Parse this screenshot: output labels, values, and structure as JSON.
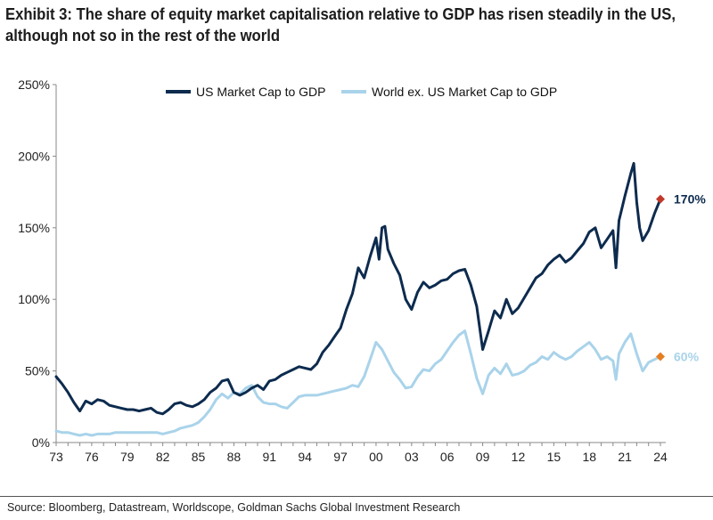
{
  "header": {
    "title": "Exhibit 3: The share of equity market capitalisation relative to GDP has risen steadily in the US, although not so in the rest of the world"
  },
  "footer": {
    "source": "Source: Bloomberg, Datastream, Worldscope, Goldman Sachs Global Investment Research"
  },
  "colors": {
    "us": "#0d2b4e",
    "world": "#a9d3ea",
    "us_marker": "#c0392b",
    "world_marker": "#e67e22"
  },
  "chart_data": {
    "type": "line",
    "title": "Exhibit 3: The share of equity market capitalisation relative to GDP has risen steadily in the US, although not so in the rest of the world",
    "xlabel": "",
    "ylabel": "",
    "xlim": [
      1973,
      2024
    ],
    "ylim": [
      0,
      250
    ],
    "x_ticks": [
      1973,
      1976,
      1979,
      1982,
      1985,
      1988,
      1991,
      1994,
      1997,
      2000,
      2003,
      2006,
      2009,
      2012,
      2015,
      2018,
      2021,
      2024
    ],
    "x_tick_labels": [
      "73",
      "76",
      "79",
      "82",
      "85",
      "88",
      "91",
      "94",
      "97",
      "00",
      "03",
      "06",
      "09",
      "12",
      "15",
      "18",
      "21",
      "24"
    ],
    "y_ticks": [
      0,
      50,
      100,
      150,
      200,
      250
    ],
    "y_tick_labels": [
      "0%",
      "50%",
      "100%",
      "150%",
      "200%",
      "250%"
    ],
    "grid": false,
    "legend_position": "top-center",
    "series": [
      {
        "name": "US Market Cap to GDP",
        "end_label": "170%",
        "end_value": 170,
        "points": [
          [
            1973.0,
            46
          ],
          [
            1973.5,
            41
          ],
          [
            1974.0,
            35
          ],
          [
            1974.5,
            28
          ],
          [
            1975.0,
            22
          ],
          [
            1975.5,
            29
          ],
          [
            1976.0,
            27
          ],
          [
            1976.5,
            30
          ],
          [
            1977.0,
            29
          ],
          [
            1977.5,
            26
          ],
          [
            1978.0,
            25
          ],
          [
            1978.5,
            24
          ],
          [
            1979.0,
            23
          ],
          [
            1979.5,
            23
          ],
          [
            1980.0,
            22
          ],
          [
            1980.5,
            23
          ],
          [
            1981.0,
            24
          ],
          [
            1981.5,
            21
          ],
          [
            1982.0,
            20
          ],
          [
            1982.5,
            23
          ],
          [
            1983.0,
            27
          ],
          [
            1983.5,
            28
          ],
          [
            1984.0,
            26
          ],
          [
            1984.5,
            25
          ],
          [
            1985.0,
            27
          ],
          [
            1985.5,
            30
          ],
          [
            1986.0,
            35
          ],
          [
            1986.5,
            38
          ],
          [
            1987.0,
            43
          ],
          [
            1987.5,
            44
          ],
          [
            1988.0,
            35
          ],
          [
            1988.5,
            33
          ],
          [
            1989.0,
            35
          ],
          [
            1989.5,
            38
          ],
          [
            1990.0,
            40
          ],
          [
            1990.5,
            37
          ],
          [
            1991.0,
            43
          ],
          [
            1991.5,
            44
          ],
          [
            1992.0,
            47
          ],
          [
            1992.5,
            49
          ],
          [
            1993.0,
            51
          ],
          [
            1993.5,
            53
          ],
          [
            1994.0,
            52
          ],
          [
            1994.5,
            51
          ],
          [
            1995.0,
            55
          ],
          [
            1995.5,
            63
          ],
          [
            1996.0,
            68
          ],
          [
            1996.5,
            74
          ],
          [
            1997.0,
            80
          ],
          [
            1997.5,
            93
          ],
          [
            1998.0,
            104
          ],
          [
            1998.5,
            122
          ],
          [
            1999.0,
            115
          ],
          [
            1999.5,
            130
          ],
          [
            2000.0,
            143
          ],
          [
            2000.25,
            128
          ],
          [
            2000.5,
            150
          ],
          [
            2000.75,
            151
          ],
          [
            2001.0,
            135
          ],
          [
            2001.5,
            125
          ],
          [
            2002.0,
            117
          ],
          [
            2002.5,
            100
          ],
          [
            2003.0,
            93
          ],
          [
            2003.5,
            105
          ],
          [
            2004.0,
            112
          ],
          [
            2004.5,
            108
          ],
          [
            2005.0,
            110
          ],
          [
            2005.5,
            113
          ],
          [
            2006.0,
            114
          ],
          [
            2006.5,
            118
          ],
          [
            2007.0,
            120
          ],
          [
            2007.5,
            121
          ],
          [
            2008.0,
            110
          ],
          [
            2008.5,
            95
          ],
          [
            2009.0,
            65
          ],
          [
            2009.5,
            78
          ],
          [
            2010.0,
            92
          ],
          [
            2010.5,
            87
          ],
          [
            2011.0,
            100
          ],
          [
            2011.5,
            90
          ],
          [
            2012.0,
            94
          ],
          [
            2012.5,
            101
          ],
          [
            2013.0,
            108
          ],
          [
            2013.5,
            115
          ],
          [
            2014.0,
            118
          ],
          [
            2014.5,
            124
          ],
          [
            2015.0,
            128
          ],
          [
            2015.5,
            131
          ],
          [
            2016.0,
            126
          ],
          [
            2016.5,
            129
          ],
          [
            2017.0,
            134
          ],
          [
            2017.5,
            139
          ],
          [
            2018.0,
            147
          ],
          [
            2018.5,
            150
          ],
          [
            2019.0,
            136
          ],
          [
            2019.5,
            142
          ],
          [
            2020.0,
            148
          ],
          [
            2020.25,
            122
          ],
          [
            2020.5,
            155
          ],
          [
            2021.0,
            172
          ],
          [
            2021.5,
            188
          ],
          [
            2021.75,
            195
          ],
          [
            2022.0,
            168
          ],
          [
            2022.25,
            150
          ],
          [
            2022.5,
            141
          ],
          [
            2023.0,
            148
          ],
          [
            2023.5,
            160
          ],
          [
            2024.0,
            170
          ]
        ]
      },
      {
        "name": "World ex. US Market Cap to GDP",
        "end_label": "60%",
        "end_value": 60,
        "points": [
          [
            1973.0,
            8
          ],
          [
            1973.5,
            7
          ],
          [
            1974.0,
            7
          ],
          [
            1974.5,
            6
          ],
          [
            1975.0,
            5
          ],
          [
            1975.5,
            6
          ],
          [
            1976.0,
            5
          ],
          [
            1976.5,
            6
          ],
          [
            1977.0,
            6
          ],
          [
            1977.5,
            6
          ],
          [
            1978.0,
            7
          ],
          [
            1978.5,
            7
          ],
          [
            1979.0,
            7
          ],
          [
            1979.5,
            7
          ],
          [
            1980.0,
            7
          ],
          [
            1980.5,
            7
          ],
          [
            1981.0,
            7
          ],
          [
            1981.5,
            7
          ],
          [
            1982.0,
            6
          ],
          [
            1982.5,
            7
          ],
          [
            1983.0,
            8
          ],
          [
            1983.5,
            10
          ],
          [
            1984.0,
            11
          ],
          [
            1984.5,
            12
          ],
          [
            1985.0,
            14
          ],
          [
            1985.5,
            18
          ],
          [
            1986.0,
            23
          ],
          [
            1986.5,
            30
          ],
          [
            1987.0,
            34
          ],
          [
            1987.5,
            31
          ],
          [
            1988.0,
            35
          ],
          [
            1988.5,
            34
          ],
          [
            1989.0,
            38
          ],
          [
            1989.5,
            40
          ],
          [
            1990.0,
            32
          ],
          [
            1990.5,
            28
          ],
          [
            1991.0,
            27
          ],
          [
            1991.5,
            27
          ],
          [
            1992.0,
            25
          ],
          [
            1992.5,
            24
          ],
          [
            1993.0,
            28
          ],
          [
            1993.5,
            32
          ],
          [
            1994.0,
            33
          ],
          [
            1994.5,
            33
          ],
          [
            1995.0,
            33
          ],
          [
            1995.5,
            34
          ],
          [
            1996.0,
            35
          ],
          [
            1996.5,
            36
          ],
          [
            1997.0,
            37
          ],
          [
            1997.5,
            38
          ],
          [
            1998.0,
            40
          ],
          [
            1998.5,
            39
          ],
          [
            1999.0,
            46
          ],
          [
            1999.5,
            58
          ],
          [
            2000.0,
            70
          ],
          [
            2000.5,
            65
          ],
          [
            2001.0,
            57
          ],
          [
            2001.5,
            49
          ],
          [
            2002.0,
            44
          ],
          [
            2002.5,
            38
          ],
          [
            2003.0,
            39
          ],
          [
            2003.5,
            46
          ],
          [
            2004.0,
            51
          ],
          [
            2004.5,
            50
          ],
          [
            2005.0,
            55
          ],
          [
            2005.5,
            58
          ],
          [
            2006.0,
            64
          ],
          [
            2006.5,
            70
          ],
          [
            2007.0,
            75
          ],
          [
            2007.5,
            78
          ],
          [
            2008.0,
            62
          ],
          [
            2008.5,
            45
          ],
          [
            2009.0,
            34
          ],
          [
            2009.5,
            47
          ],
          [
            2010.0,
            52
          ],
          [
            2010.5,
            48
          ],
          [
            2011.0,
            55
          ],
          [
            2011.5,
            47
          ],
          [
            2012.0,
            48
          ],
          [
            2012.5,
            50
          ],
          [
            2013.0,
            54
          ],
          [
            2013.5,
            56
          ],
          [
            2014.0,
            60
          ],
          [
            2014.5,
            58
          ],
          [
            2015.0,
            63
          ],
          [
            2015.5,
            60
          ],
          [
            2016.0,
            58
          ],
          [
            2016.5,
            60
          ],
          [
            2017.0,
            64
          ],
          [
            2017.5,
            67
          ],
          [
            2018.0,
            70
          ],
          [
            2018.5,
            65
          ],
          [
            2019.0,
            58
          ],
          [
            2019.5,
            60
          ],
          [
            2020.0,
            57
          ],
          [
            2020.25,
            44
          ],
          [
            2020.5,
            62
          ],
          [
            2021.0,
            70
          ],
          [
            2021.5,
            76
          ],
          [
            2022.0,
            62
          ],
          [
            2022.5,
            50
          ],
          [
            2023.0,
            56
          ],
          [
            2023.5,
            58
          ],
          [
            2024.0,
            60
          ]
        ]
      }
    ]
  }
}
